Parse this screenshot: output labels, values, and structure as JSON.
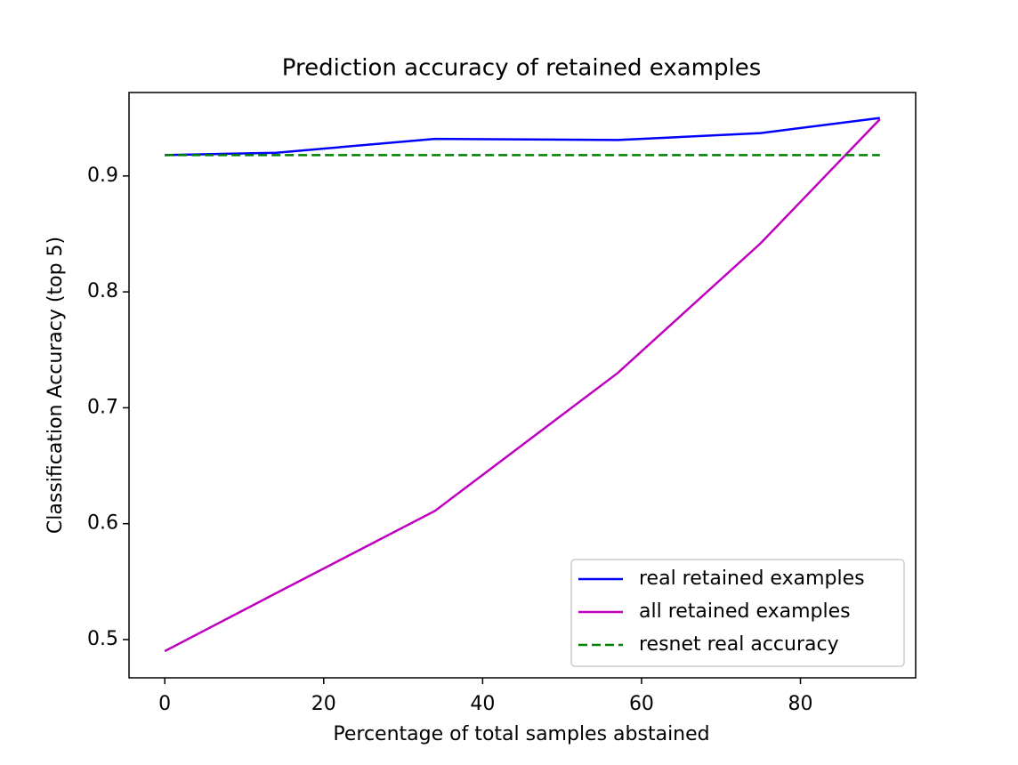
{
  "chart_data": {
    "type": "line",
    "title": "Prediction accuracy of retained examples",
    "x_label": "Percentage of total samples abstained",
    "y_label": "Classification Accuracy (top 5)",
    "x": [
      0,
      14,
      34,
      57,
      75,
      90
    ],
    "series": [
      {
        "name": "real retained examples",
        "color": "#0000ff",
        "style": "solid",
        "values": [
          0.918,
          0.92,
          0.932,
          0.931,
          0.937,
          0.95
        ]
      },
      {
        "name": "all retained examples",
        "color": "#bf00bf",
        "style": "solid",
        "values": [
          0.49,
          0.54,
          0.611,
          0.73,
          0.842,
          0.949
        ]
      },
      {
        "name": "resnet real accuracy",
        "color": "#008000",
        "style": "dashed",
        "values": [
          0.918,
          0.918,
          0.918,
          0.918,
          0.918,
          0.918
        ]
      }
    ],
    "xlim": [
      -4.5,
      94.5
    ],
    "ylim": [
      0.467,
      0.972
    ],
    "xticks": [
      0,
      20,
      40,
      60,
      80
    ],
    "yticks": [
      0.5,
      0.6,
      0.7,
      0.8,
      0.9
    ],
    "grid": false,
    "legend": "lower right"
  }
}
